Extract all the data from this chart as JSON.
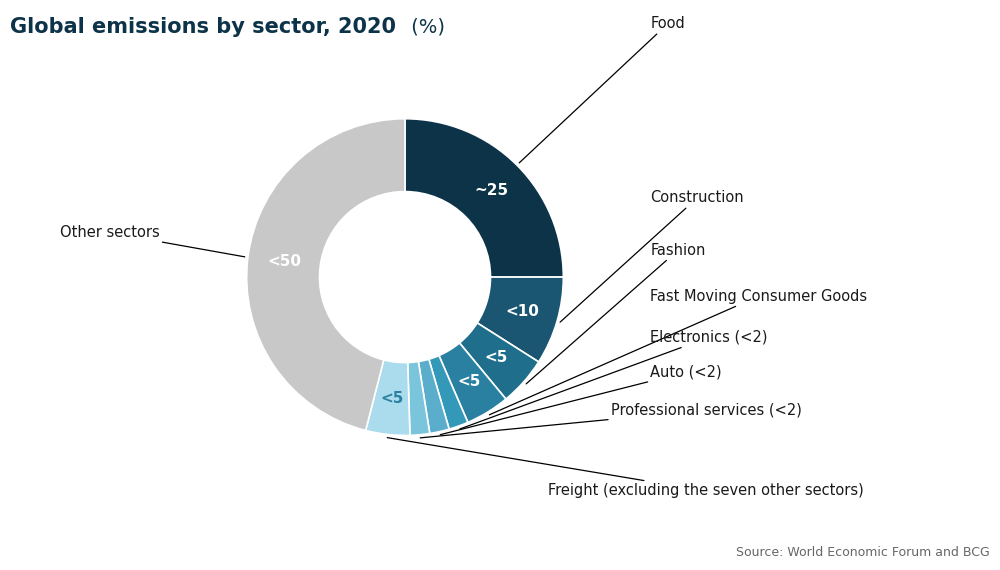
{
  "title_bold": "Global emissions by sector, 2020",
  "title_normal": " (%)",
  "source": "Source: World Economic Forum and BCG",
  "sectors": [
    {
      "label": "Food",
      "value": 25,
      "color": "#0d3349",
      "text_label": "~25",
      "text_color": "white"
    },
    {
      "label": "Construction",
      "value": 9,
      "color": "#1a5572",
      "text_label": "<10",
      "text_color": "white"
    },
    {
      "label": "Fashion",
      "value": 5,
      "color": "#1e6e8c",
      "text_label": "<5",
      "text_color": "white"
    },
    {
      "label": "Fast Moving Consumer Goods",
      "value": 4.5,
      "color": "#2980a0",
      "text_label": "<5",
      "text_color": "white"
    },
    {
      "label": "Electronics (<2)",
      "value": 2,
      "color": "#3498b8",
      "text_label": "",
      "text_color": "white"
    },
    {
      "label": "Auto (<2)",
      "value": 2,
      "color": "#5aaecc",
      "text_label": "",
      "text_color": "white"
    },
    {
      "label": "Professional services (<2)",
      "value": 2,
      "color": "#7ac4dc",
      "text_label": "",
      "text_color": "white"
    },
    {
      "label": "Freight (excluding the seven other sectors)",
      "value": 4.5,
      "color": "#aadcee",
      "text_label": "<5",
      "text_color": "#2980a0"
    },
    {
      "label": "Other sectors",
      "value": 46,
      "color": "#c8c8c8",
      "text_label": "<50",
      "text_color": "white"
    }
  ],
  "outer_r": 1.0,
  "inner_r": 0.54,
  "start_angle": 90,
  "title_color": "#0d3349",
  "annotation_color": "#1a1a1a",
  "title_line_color": "#0d3349"
}
